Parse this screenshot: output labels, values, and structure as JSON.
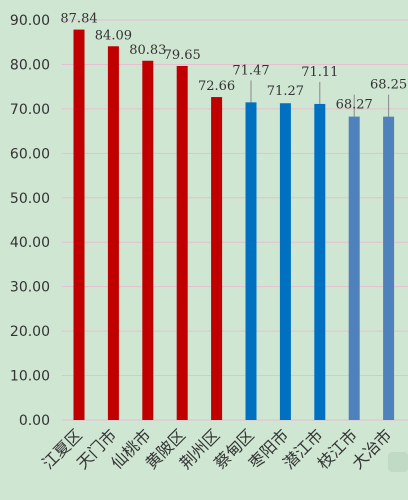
{
  "chart_data": {
    "type": "bar",
    "title": "",
    "xlabel": "",
    "ylabel": "",
    "ylim": [
      0,
      90
    ],
    "yticks": [
      "0.00",
      "10.00",
      "20.00",
      "30.00",
      "40.00",
      "50.00",
      "60.00",
      "70.00",
      "80.00",
      "90.00"
    ],
    "grid": true,
    "categories": [
      "江夏区",
      "天门市",
      "仙桃市",
      "黄陂区",
      "荆州区",
      "蔡甸区",
      "枣阳市",
      "潜江市",
      "枝江市",
      "大冶市"
    ],
    "values": [
      87.84,
      84.09,
      80.83,
      79.65,
      72.66,
      71.47,
      71.27,
      71.11,
      68.27,
      68.25
    ],
    "data_labels": [
      "87.84",
      "84.09",
      "80.83",
      "79.65",
      "72.66",
      "71.47",
      "71.27",
      "71.11",
      "68.27",
      "68.25"
    ],
    "colors": [
      "#c00000",
      "#c00000",
      "#c00000",
      "#c00000",
      "#c00000",
      "#0070c0",
      "#0070c0",
      "#0070c0",
      "#4f81bd",
      "#4f81bd"
    ]
  }
}
